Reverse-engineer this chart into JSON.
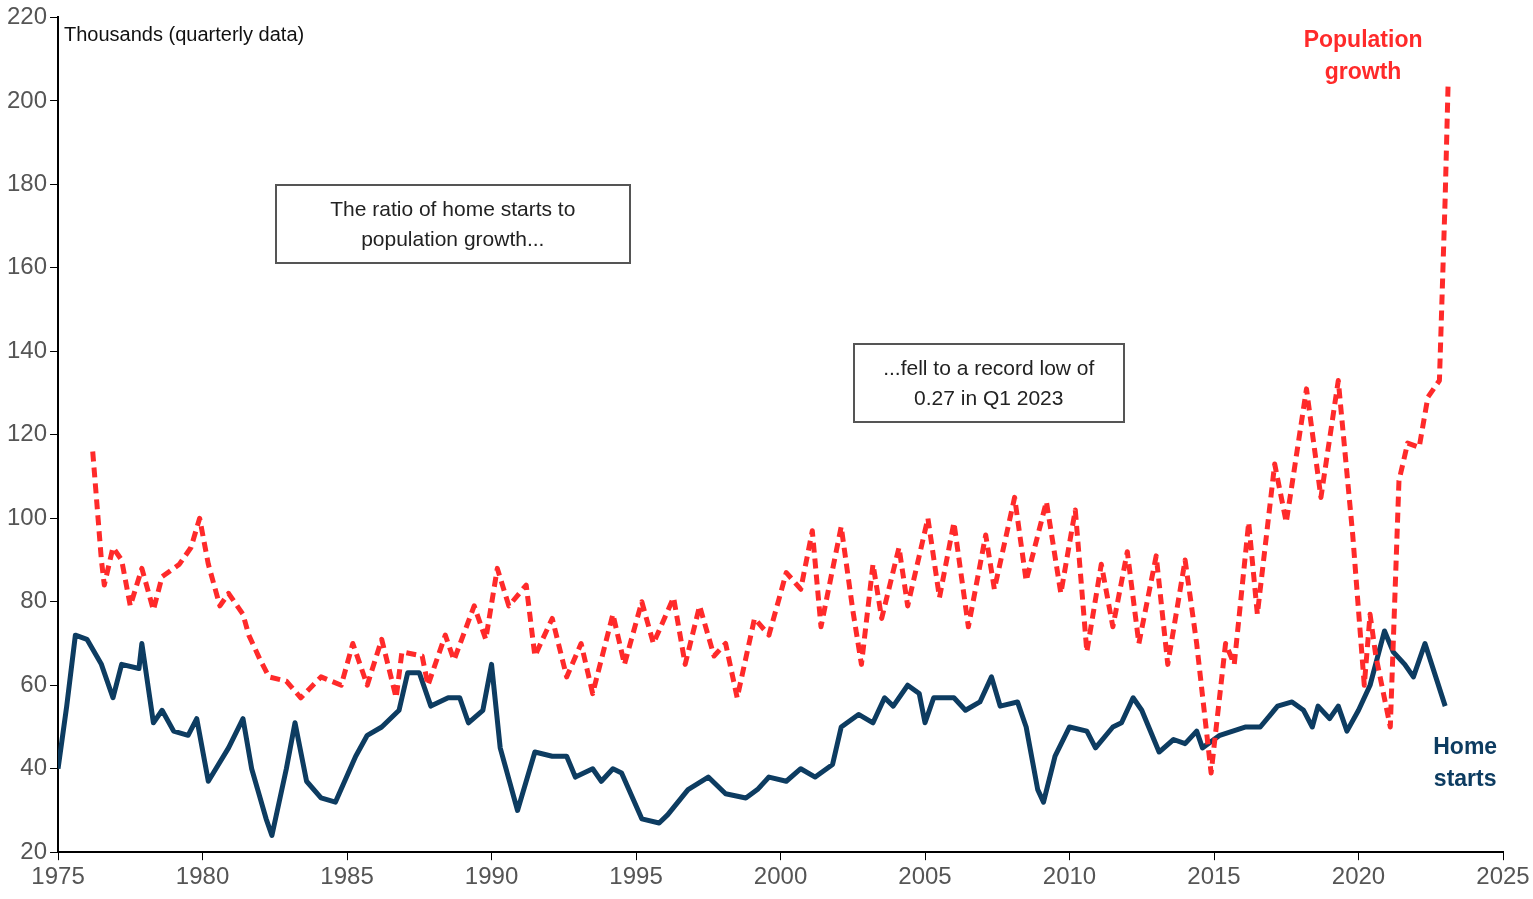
{
  "chart_data": {
    "type": "line",
    "ylabel": "Thousands (quarterly data)",
    "xlim": [
      1975,
      2025
    ],
    "xticks": [
      1975,
      1980,
      1985,
      1990,
      1995,
      2000,
      2005,
      2010,
      2015,
      2020,
      2025
    ],
    "ylim": [
      20,
      220
    ],
    "yticks": [
      20,
      40,
      60,
      80,
      100,
      120,
      140,
      160,
      180,
      200,
      220
    ],
    "grid": false,
    "legend": false,
    "marker": "none",
    "annotations": [
      "The ratio of home starts to population growth...",
      "...fell to a record low of 0.27 in Q1 2023"
    ],
    "series": [
      {
        "name": "Population growth",
        "color": "#ff2a2a",
        "line_style": "dashed",
        "x": [
          1976.2,
          1976.5,
          1976.6,
          1976.9,
          1977.2,
          1977.5,
          1977.9,
          1978.3,
          1978.6,
          1979.2,
          1979.6,
          1979.9,
          1980.2,
          1980.6,
          1980.9,
          1981.4,
          1981.6,
          1982,
          1982.3,
          1982.9,
          1983.4,
          1984.1,
          1984.8,
          1985.2,
          1985.7,
          1986.2,
          1986.7,
          1986.9,
          1987.6,
          1987.8,
          1988.4,
          1988.7,
          1989.4,
          1989.8,
          1990.2,
          1990.6,
          1991.2,
          1991.5,
          1992.1,
          1992.6,
          1993.1,
          1993.5,
          1994.2,
          1994.6,
          1995.2,
          1995.6,
          1996.3,
          1996.7,
          1997.2,
          1997.7,
          1998.1,
          1998.5,
          1999.1,
          1999.6,
          2000.2,
          2000.7,
          2001.1,
          2001.4,
          2002.1,
          2002.5,
          2002.8,
          2003.2,
          2003.5,
          2004.1,
          2004.4,
          2005.1,
          2005.5,
          2006,
          2006.5,
          2007.1,
          2007.4,
          2008.1,
          2008.5,
          2009.2,
          2009.7,
          2010.2,
          2010.6,
          2011.1,
          2011.5,
          2012,
          2012.4,
          2013,
          2013.4,
          2014,
          2014.4,
          2014.9,
          2015.4,
          2015.7,
          2016.2,
          2016.5,
          2017.1,
          2017.5,
          2018.2,
          2018.7,
          2019.3,
          2019.8,
          2020.2,
          2020.4,
          2020.6,
          2021.1,
          2021.4,
          2021.7,
          2022.1,
          2022.4,
          2022.8,
          2023,
          2023.1
        ],
        "values": [
          116,
          90,
          84,
          93,
          90,
          79,
          88,
          78,
          86,
          89,
          93,
          100,
          89,
          79,
          82,
          77,
          72,
          66,
          62,
          61,
          57,
          62,
          60,
          70,
          60,
          71,
          57,
          68,
          67,
          60,
          72,
          66,
          79,
          71,
          88,
          79,
          84,
          67,
          76,
          62,
          70,
          58,
          77,
          65,
          80,
          70,
          81,
          65,
          79,
          67,
          70,
          57,
          76,
          72,
          87,
          83,
          97,
          74,
          98,
          78,
          65,
          89,
          76,
          93,
          79,
          100,
          81,
          99,
          74,
          96,
          83,
          105,
          85,
          104,
          82,
          102,
          68,
          89,
          74,
          92,
          70,
          91,
          65,
          90,
          70,
          39,
          70,
          65,
          99,
          77,
          113,
          99,
          131,
          105,
          133,
          96,
          60,
          77,
          67,
          50,
          109,
          118,
          117,
          129,
          133,
          177,
          204
        ]
      },
      {
        "name": "Home starts",
        "color": "#0d3c61",
        "line_style": "solid",
        "x": [
          1975,
          1975.3,
          1975.6,
          1976,
          1976.5,
          1976.9,
          1977.2,
          1977.8,
          1977.9,
          1978.3,
          1978.6,
          1979,
          1979.5,
          1979.8,
          1980.2,
          1980.9,
          1981.4,
          1981.7,
          1982.2,
          1982.4,
          1982.9,
          1983.2,
          1983.6,
          1984.1,
          1984.6,
          1985.3,
          1985.7,
          1986.2,
          1986.8,
          1987.1,
          1987.5,
          1987.9,
          1988.5,
          1988.9,
          1989.2,
          1989.7,
          1990,
          1990.3,
          1990.9,
          1991.5,
          1992.1,
          1992.6,
          1992.9,
          1993.5,
          1993.8,
          1994.2,
          1994.5,
          1995.2,
          1995.8,
          1996.1,
          1996.8,
          1997.5,
          1998.1,
          1998.8,
          1999.2,
          1999.6,
          2000.2,
          2000.7,
          2001.2,
          2001.8,
          2002.1,
          2002.7,
          2003.2,
          2003.6,
          2003.9,
          2004.4,
          2004.8,
          2005,
          2005.3,
          2006,
          2006.4,
          2006.9,
          2007.3,
          2007.6,
          2008.2,
          2008.5,
          2008.9,
          2009.1,
          2009.5,
          2010,
          2010.6,
          2010.9,
          2011.5,
          2011.8,
          2012.2,
          2012.5,
          2013.1,
          2013.6,
          2014,
          2014.4,
          2014.6,
          2015.2,
          2016.1,
          2016.6,
          2017.2,
          2017.7,
          2018.1,
          2018.4,
          2018.6,
          2019,
          2019.3,
          2019.6,
          2020,
          2020.4,
          2020.9,
          2021.2,
          2021.6,
          2021.9,
          2022.3,
          2023
        ],
        "values": [
          40,
          55,
          72,
          71,
          65,
          57,
          65,
          64,
          70,
          51,
          54,
          49,
          48,
          52,
          37,
          45,
          52,
          40,
          28,
          24,
          40,
          51,
          37,
          33,
          32,
          43,
          48,
          50,
          54,
          63,
          63,
          55,
          57,
          57,
          51,
          54,
          65,
          45,
          30,
          44,
          43,
          43,
          38,
          40,
          37,
          40,
          39,
          28,
          27,
          29,
          35,
          38,
          34,
          33,
          35,
          38,
          37,
          40,
          38,
          41,
          50,
          53,
          51,
          57,
          55,
          60,
          58,
          51,
          57,
          57,
          54,
          56,
          62,
          55,
          56,
          50,
          35,
          32,
          43,
          50,
          49,
          45,
          50,
          51,
          57,
          54,
          44,
          47,
          46,
          49,
          45,
          48,
          50,
          50,
          55,
          56,
          54,
          50,
          55,
          52,
          55,
          49,
          54,
          60,
          73,
          68,
          65,
          62,
          70,
          55
        ]
      }
    ]
  }
}
